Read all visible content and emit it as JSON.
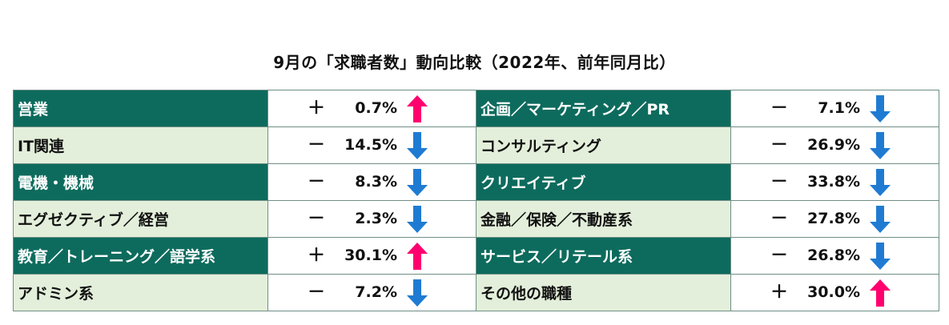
{
  "title": "9月の「求職者数」動向比較（2022年、前年同月比）",
  "colors": {
    "dark_row": "#0d6b5d",
    "light_row": "#e3efda",
    "up_arrow": "#ff006e",
    "down_arrow": "#1f7bd2"
  },
  "rows": [
    {
      "left": {
        "name": "営業",
        "sign": "＋",
        "value": "0.7%",
        "trend": "up"
      },
      "right": {
        "name": "企画／マーケティング／PR",
        "sign": "－",
        "value": "7.1%",
        "trend": "down"
      }
    },
    {
      "left": {
        "name": "IT関連",
        "sign": "－",
        "value": "14.5%",
        "trend": "down"
      },
      "right": {
        "name": "コンサルティング",
        "sign": "－",
        "value": "26.9%",
        "trend": "down"
      }
    },
    {
      "left": {
        "name": "電機・機械",
        "sign": "－",
        "value": "8.3%",
        "trend": "down"
      },
      "right": {
        "name": "クリエイティブ",
        "sign": "－",
        "value": "33.8%",
        "trend": "down"
      }
    },
    {
      "left": {
        "name": "エグゼクティブ／経営",
        "sign": "－",
        "value": "2.3%",
        "trend": "down"
      },
      "right": {
        "name": "金融／保険／不動産系",
        "sign": "－",
        "value": "27.8%",
        "trend": "down"
      }
    },
    {
      "left": {
        "name": "教育／トレーニング／語学系",
        "sign": "＋",
        "value": "30.1%",
        "trend": "up"
      },
      "right": {
        "name": "サービス／リテール系",
        "sign": "－",
        "value": "26.8%",
        "trend": "down"
      }
    },
    {
      "left": {
        "name": "アドミン系",
        "sign": "－",
        "value": "7.2%",
        "trend": "down"
      },
      "right": {
        "name": "その他の職種",
        "sign": "＋",
        "value": "30.0%",
        "trend": "up"
      }
    }
  ]
}
